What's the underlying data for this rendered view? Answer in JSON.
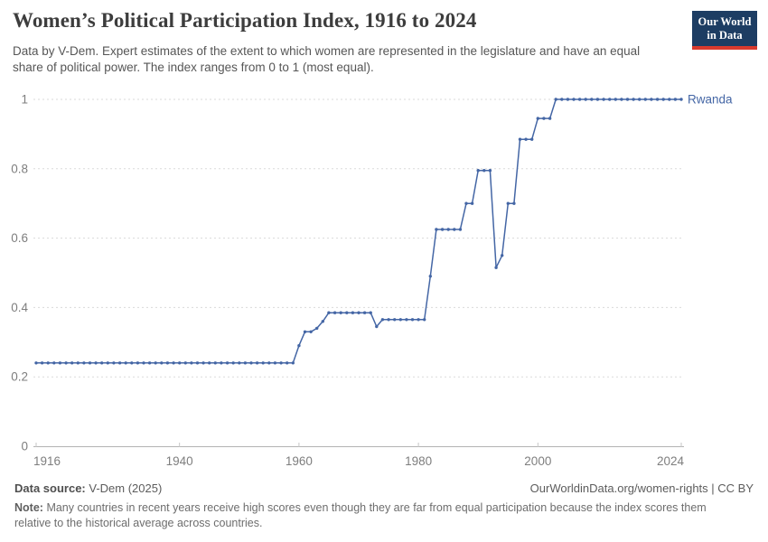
{
  "header": {
    "title": "Women’s Political Participation Index, 1916 to 2024",
    "subtitle": "Data by V-Dem. Expert estimates of the extent to which women are represented in the legislature and have an equal share of political power. The index ranges from 0 to 1 (most equal).",
    "logo": {
      "line1": "Our World",
      "line2": "in Data",
      "bg_color": "#1d3d63",
      "accent_color": "#d93a2d"
    }
  },
  "chart_data": {
    "type": "line",
    "title": "Women’s Political Participation Index, 1916 to 2024",
    "xlabel": "",
    "ylabel": "",
    "xlim": [
      1916,
      2024
    ],
    "ylim": [
      0,
      1
    ],
    "x_ticks": [
      1916,
      1940,
      1960,
      1980,
      2000,
      2024
    ],
    "y_ticks": [
      "0",
      "0.2",
      "0.4",
      "0.6",
      "0.8",
      "1"
    ],
    "grid": "horizontal dashed",
    "legend_position": "line-end label",
    "series": [
      {
        "name": "Rwanda",
        "color": "#4466a5",
        "points": [
          [
            1916,
            0.24
          ],
          [
            1917,
            0.24
          ],
          [
            1918,
            0.24
          ],
          [
            1919,
            0.24
          ],
          [
            1920,
            0.24
          ],
          [
            1921,
            0.24
          ],
          [
            1922,
            0.24
          ],
          [
            1923,
            0.24
          ],
          [
            1924,
            0.24
          ],
          [
            1925,
            0.24
          ],
          [
            1926,
            0.24
          ],
          [
            1927,
            0.24
          ],
          [
            1928,
            0.24
          ],
          [
            1929,
            0.24
          ],
          [
            1930,
            0.24
          ],
          [
            1931,
            0.24
          ],
          [
            1932,
            0.24
          ],
          [
            1933,
            0.24
          ],
          [
            1934,
            0.24
          ],
          [
            1935,
            0.24
          ],
          [
            1936,
            0.24
          ],
          [
            1937,
            0.24
          ],
          [
            1938,
            0.24
          ],
          [
            1939,
            0.24
          ],
          [
            1940,
            0.24
          ],
          [
            1941,
            0.24
          ],
          [
            1942,
            0.24
          ],
          [
            1943,
            0.24
          ],
          [
            1944,
            0.24
          ],
          [
            1945,
            0.24
          ],
          [
            1946,
            0.24
          ],
          [
            1947,
            0.24
          ],
          [
            1948,
            0.24
          ],
          [
            1949,
            0.24
          ],
          [
            1950,
            0.24
          ],
          [
            1951,
            0.24
          ],
          [
            1952,
            0.24
          ],
          [
            1953,
            0.24
          ],
          [
            1954,
            0.24
          ],
          [
            1955,
            0.24
          ],
          [
            1956,
            0.24
          ],
          [
            1957,
            0.24
          ],
          [
            1958,
            0.24
          ],
          [
            1959,
            0.24
          ],
          [
            1960,
            0.29
          ],
          [
            1961,
            0.33
          ],
          [
            1962,
            0.33
          ],
          [
            1963,
            0.34
          ],
          [
            1964,
            0.36
          ],
          [
            1965,
            0.385
          ],
          [
            1966,
            0.385
          ],
          [
            1967,
            0.385
          ],
          [
            1968,
            0.385
          ],
          [
            1969,
            0.385
          ],
          [
            1970,
            0.385
          ],
          [
            1971,
            0.385
          ],
          [
            1972,
            0.385
          ],
          [
            1973,
            0.345
          ],
          [
            1974,
            0.365
          ],
          [
            1975,
            0.365
          ],
          [
            1976,
            0.365
          ],
          [
            1977,
            0.365
          ],
          [
            1978,
            0.365
          ],
          [
            1979,
            0.365
          ],
          [
            1980,
            0.365
          ],
          [
            1981,
            0.365
          ],
          [
            1982,
            0.49
          ],
          [
            1983,
            0.625
          ],
          [
            1984,
            0.625
          ],
          [
            1985,
            0.625
          ],
          [
            1986,
            0.625
          ],
          [
            1987,
            0.625
          ],
          [
            1988,
            0.7
          ],
          [
            1989,
            0.7
          ],
          [
            1990,
            0.795
          ],
          [
            1991,
            0.795
          ],
          [
            1992,
            0.795
          ],
          [
            1993,
            0.515
          ],
          [
            1994,
            0.55
          ],
          [
            1995,
            0.7
          ],
          [
            1996,
            0.7
          ],
          [
            1997,
            0.885
          ],
          [
            1998,
            0.885
          ],
          [
            1999,
            0.885
          ],
          [
            2000,
            0.945
          ],
          [
            2001,
            0.945
          ],
          [
            2002,
            0.945
          ],
          [
            2003,
            1
          ],
          [
            2004,
            1
          ],
          [
            2005,
            1
          ],
          [
            2006,
            1
          ],
          [
            2007,
            1
          ],
          [
            2008,
            1
          ],
          [
            2009,
            1
          ],
          [
            2010,
            1
          ],
          [
            2011,
            1
          ],
          [
            2012,
            1
          ],
          [
            2013,
            1
          ],
          [
            2014,
            1
          ],
          [
            2015,
            1
          ],
          [
            2016,
            1
          ],
          [
            2017,
            1
          ],
          [
            2018,
            1
          ],
          [
            2019,
            1
          ],
          [
            2020,
            1
          ],
          [
            2021,
            1
          ],
          [
            2022,
            1
          ],
          [
            2023,
            1
          ],
          [
            2024,
            1
          ]
        ]
      }
    ],
    "style": {
      "gridline_color": "#dadada",
      "axis_color": "#b3b3b3",
      "tick_label_color": "#7e7e7e"
    }
  },
  "footer": {
    "data_source_label": "Data source:",
    "data_source_value": "V-Dem (2025)",
    "attribution": "OurWorldinData.org/women-rights | CC BY",
    "note_label": "Note:",
    "note_text": "Many countries in recent years receive high scores even though they are far from equal participation because the index scores them relative to the historical average across countries."
  }
}
